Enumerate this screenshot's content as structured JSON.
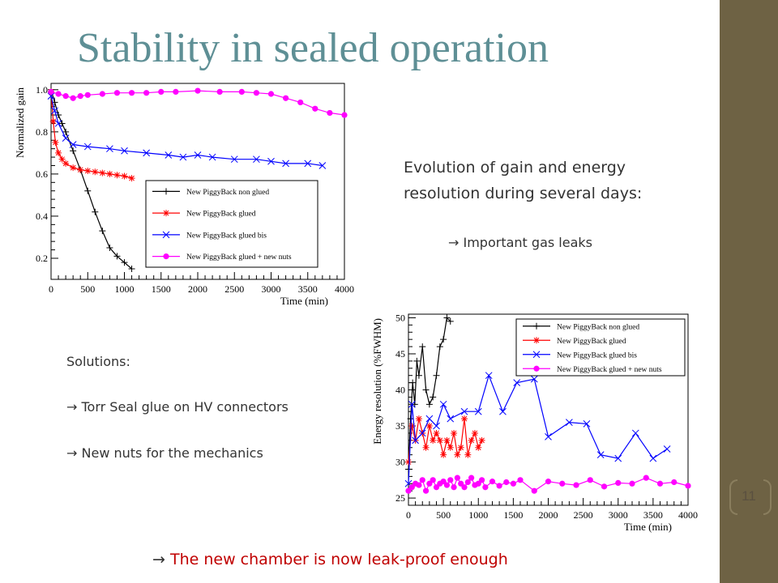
{
  "slide": {
    "title": "Stability in sealed operation",
    "evolution_text_1": "Evolution of gain and energy",
    "evolution_text_2": "resolution during several days:",
    "arrow": "→",
    "gas_leaks": "Important gas leaks",
    "solutions_heading": "Solutions:",
    "solution_1": "Torr Seal glue on HV connectors",
    "solution_2": "New nuts for the mechanics",
    "conclusion": "The new chamber is now leak-proof enough",
    "page_number": "11",
    "colors": {
      "title": "#5e8f95",
      "sidebar": "#6e6244",
      "conclusion": "#c00000"
    }
  },
  "chart_data": [
    {
      "type": "line",
      "title": "",
      "xlabel": "Time (min)",
      "ylabel": "Normalized gain",
      "xlim": [
        0,
        4000
      ],
      "ylim": [
        0.1,
        1.03
      ],
      "xticks": [
        0,
        500,
        1000,
        1500,
        2000,
        2500,
        3000,
        3500,
        4000
      ],
      "yticks": [
        0.2,
        0.4,
        0.6,
        0.8,
        1.0
      ],
      "ytick_labels": [
        "0.2",
        "0.4",
        "0.6",
        "0.8",
        "1.0"
      ],
      "legend_position": "bottom-right",
      "series": [
        {
          "name": "New PiggyBack non glued",
          "color": "#000000",
          "marker": "plus",
          "x": [
            0,
            50,
            100,
            150,
            200,
            300,
            400,
            500,
            600,
            700,
            800,
            900,
            1000,
            1100
          ],
          "y": [
            1.0,
            0.94,
            0.88,
            0.84,
            0.8,
            0.71,
            0.62,
            0.52,
            0.42,
            0.33,
            0.25,
            0.21,
            0.18,
            0.15
          ]
        },
        {
          "name": "New PiggyBack glued",
          "color": "#ff0000",
          "marker": "star",
          "x": [
            0,
            30,
            60,
            100,
            150,
            200,
            300,
            400,
            500,
            600,
            700,
            800,
            900,
            1000,
            1100
          ],
          "y": [
            0.99,
            0.85,
            0.75,
            0.7,
            0.67,
            0.65,
            0.63,
            0.62,
            0.615,
            0.61,
            0.605,
            0.6,
            0.595,
            0.59,
            0.58
          ]
        },
        {
          "name": "New PiggyBack glued bis",
          "color": "#0000ff",
          "marker": "cross",
          "x": [
            0,
            50,
            100,
            200,
            300,
            500,
            800,
            1000,
            1300,
            1600,
            1800,
            2000,
            2200,
            2500,
            2800,
            3000,
            3200,
            3500,
            3700
          ],
          "y": [
            0.97,
            0.9,
            0.84,
            0.77,
            0.74,
            0.73,
            0.72,
            0.71,
            0.7,
            0.69,
            0.68,
            0.69,
            0.68,
            0.67,
            0.67,
            0.66,
            0.65,
            0.65,
            0.64
          ]
        },
        {
          "name": "New PiggyBack glued + new nuts",
          "color": "#ff00ff",
          "marker": "circle",
          "x": [
            0,
            100,
            200,
            300,
            400,
            500,
            700,
            900,
            1100,
            1300,
            1500,
            1700,
            2000,
            2300,
            2600,
            2800,
            3000,
            3200,
            3400,
            3600,
            3800,
            4000
          ],
          "y": [
            0.99,
            0.98,
            0.97,
            0.96,
            0.97,
            0.975,
            0.98,
            0.985,
            0.985,
            0.985,
            0.99,
            0.99,
            0.995,
            0.99,
            0.99,
            0.985,
            0.98,
            0.96,
            0.94,
            0.91,
            0.89,
            0.88
          ]
        }
      ]
    },
    {
      "type": "line",
      "title": "",
      "xlabel": "Time (min)",
      "ylabel": "Energy resolution (%FWHM)",
      "xlim": [
        0,
        4000
      ],
      "ylim": [
        24,
        50.5
      ],
      "xticks": [
        0,
        500,
        1000,
        1500,
        2000,
        2500,
        3000,
        3500,
        4000
      ],
      "yticks": [
        25,
        30,
        35,
        40,
        45,
        50
      ],
      "ytick_labels": [
        "25",
        "30",
        "35",
        "40",
        "45",
        "50"
      ],
      "legend_position": "top-right",
      "series": [
        {
          "name": "New PiggyBack non glued",
          "color": "#000000",
          "marker": "plus",
          "x": [
            0,
            30,
            60,
            90,
            120,
            150,
            200,
            250,
            300,
            350,
            400,
            450,
            500,
            550,
            600
          ],
          "y": [
            29,
            36,
            41,
            38,
            44,
            42,
            46,
            40,
            38,
            39,
            42,
            46,
            47,
            50,
            49.5
          ]
        },
        {
          "name": "New PiggyBack glued",
          "color": "#ff0000",
          "marker": "star",
          "x": [
            0,
            50,
            100,
            150,
            200,
            250,
            300,
            350,
            400,
            450,
            500,
            550,
            600,
            650,
            700,
            750,
            800,
            850,
            900,
            950,
            1000,
            1050
          ],
          "y": [
            30,
            35,
            33,
            36,
            34,
            32,
            35,
            33,
            34,
            33,
            31,
            33,
            32,
            34,
            31,
            32,
            36,
            31,
            33,
            34,
            32,
            33
          ]
        },
        {
          "name": "New PiggyBack glued bis",
          "color": "#0000ff",
          "marker": "cross",
          "x": [
            0,
            50,
            100,
            200,
            300,
            400,
            500,
            600,
            800,
            1000,
            1150,
            1350,
            1550,
            1800,
            2000,
            2300,
            2550,
            2750,
            3000,
            3250,
            3500,
            3700
          ],
          "y": [
            27,
            38,
            33,
            34,
            36,
            35,
            38,
            36,
            37,
            37,
            42,
            37,
            41,
            41.5,
            33.5,
            35.5,
            35.3,
            31,
            30.5,
            34,
            30.5,
            31.8
          ]
        },
        {
          "name": "New PiggyBack glued + new nuts",
          "color": "#ff00ff",
          "marker": "circle",
          "x": [
            0,
            50,
            100,
            150,
            200,
            250,
            300,
            350,
            400,
            450,
            500,
            550,
            600,
            650,
            700,
            750,
            800,
            850,
            900,
            950,
            1000,
            1050,
            1100,
            1200,
            1300,
            1400,
            1500,
            1600,
            1800,
            2000,
            2200,
            2400,
            2600,
            2800,
            3000,
            3200,
            3400,
            3600,
            3800,
            4000
          ],
          "y": [
            26,
            26.5,
            27,
            26.8,
            27.5,
            26,
            27,
            27.5,
            26.5,
            27,
            27.3,
            26.8,
            27.5,
            26.5,
            27.8,
            27,
            26.5,
            27.2,
            27.8,
            26.8,
            27,
            27.5,
            26.5,
            27.3,
            26.7,
            27.2,
            27,
            27.5,
            26,
            27.3,
            27,
            26.8,
            27.5,
            26.6,
            27.1,
            27,
            27.8,
            27,
            27.2,
            26.7
          ]
        }
      ]
    }
  ]
}
